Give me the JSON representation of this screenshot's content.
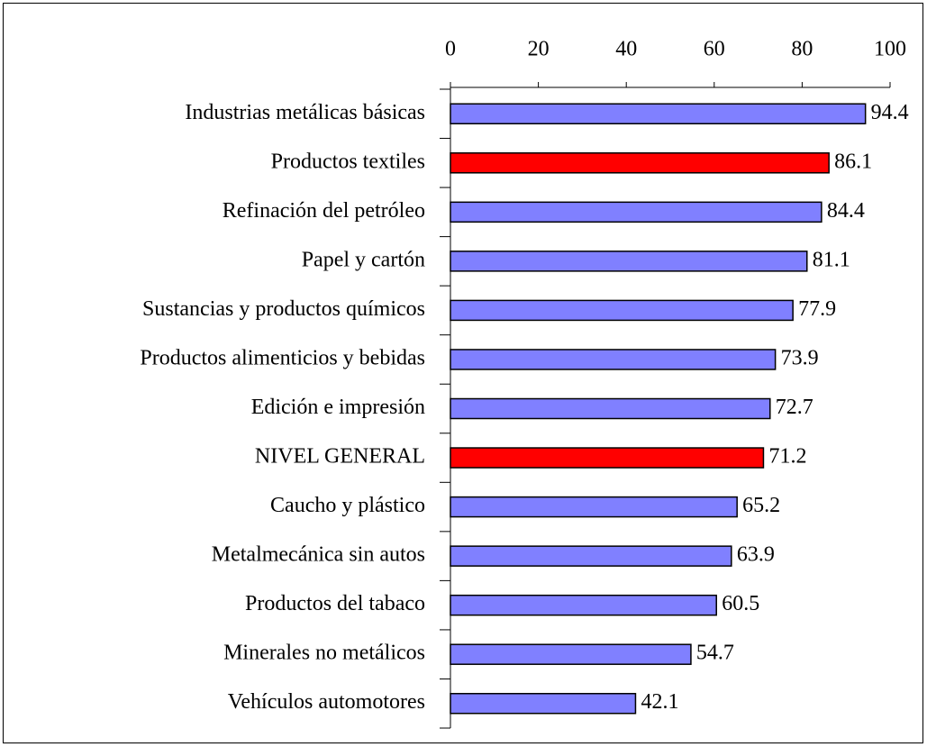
{
  "chart_data": {
    "type": "bar",
    "categories": [
      "Industrias metálicas básicas",
      "Productos textiles",
      "Refinación del petróleo",
      "Papel y cartón",
      "Sustancias y productos químicos",
      "Productos alimenticios y bebidas",
      "Edición e impresión",
      "NIVEL GENERAL",
      "Caucho y plástico",
      "Metalmecánica sin autos",
      "Productos del tabaco",
      "Minerales no metálicos",
      "Vehículos automotores"
    ],
    "values": [
      94.4,
      86.1,
      84.4,
      81.1,
      77.9,
      73.9,
      72.7,
      71.2,
      65.2,
      63.9,
      60.5,
      54.7,
      42.1
    ],
    "colors": [
      "#8080ff",
      "#ff0000",
      "#8080ff",
      "#8080ff",
      "#8080ff",
      "#8080ff",
      "#8080ff",
      "#ff0000",
      "#8080ff",
      "#8080ff",
      "#8080ff",
      "#8080ff",
      "#8080ff"
    ],
    "xlim": [
      0,
      100
    ],
    "xticks": [
      0,
      20,
      40,
      60,
      80,
      100
    ]
  }
}
